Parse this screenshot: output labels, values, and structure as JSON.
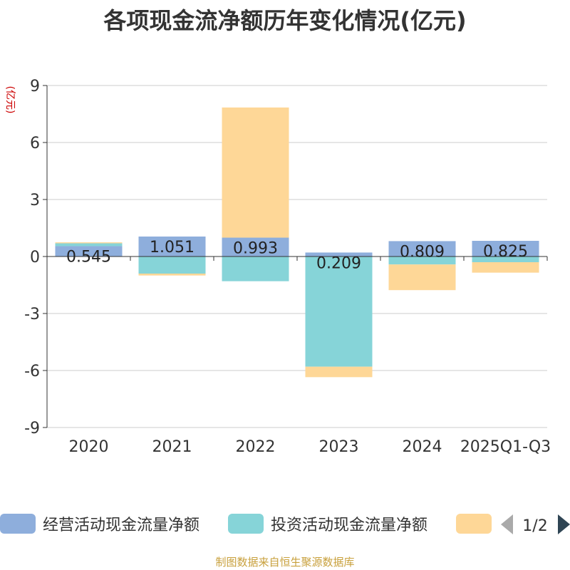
{
  "chart_data": {
    "type": "bar",
    "stacked": true,
    "title": "各项现金流净额历年变化情况(亿元)",
    "ylabel": "(亿元)",
    "xlabel": "",
    "ylim": [
      -9,
      9
    ],
    "yticks": [
      -9,
      -6,
      -3,
      0,
      3,
      6,
      9
    ],
    "categories": [
      "2020",
      "2021",
      "2022",
      "2023",
      "2024",
      "2025Q1-Q3"
    ],
    "series": [
      {
        "name": "经营活动现金流量净额",
        "color": "#8eaedc",
        "values": [
          0.545,
          1.051,
          0.993,
          0.209,
          0.809,
          0.825
        ],
        "labels": [
          "0.545",
          "1.051",
          "0.993",
          "0.209",
          "0.809",
          "0.825"
        ]
      },
      {
        "name": "投资活动现金流量净额",
        "color": "#86d4d8",
        "values": [
          0.15,
          -0.9,
          -1.3,
          -5.8,
          -0.42,
          -0.3
        ]
      },
      {
        "name": "",
        "color": "#fed797",
        "values": [
          0.05,
          -0.1,
          6.85,
          -0.55,
          -1.35,
          -0.55
        ]
      }
    ],
    "pagination": "1/2",
    "source": "制图数据来自恒生聚源数据库"
  }
}
